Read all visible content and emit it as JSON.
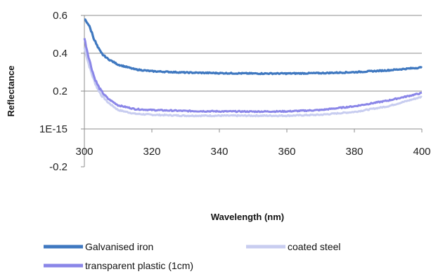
{
  "chart_data": {
    "type": "line",
    "xlabel": "Wavelength (nm)",
    "ylabel": "Reflectance",
    "xlim": [
      300,
      400
    ],
    "ylim": [
      -0.2,
      0.6
    ],
    "x_ticks": [
      "300",
      "320",
      "340",
      "360",
      "380",
      "400"
    ],
    "y_ticks": [
      "-0.2",
      "1E-15",
      "0.2",
      "0.4",
      "0.6"
    ],
    "grid": true,
    "legend_position": "bottom",
    "series": [
      {
        "name": "Galvanised iron",
        "color": "#3f78c0",
        "x": [
          300,
          301,
          302,
          303,
          304,
          305,
          307,
          310,
          315,
          320,
          330,
          340,
          350,
          360,
          370,
          380,
          390,
          400
        ],
        "y": [
          0.58,
          0.56,
          0.52,
          0.47,
          0.43,
          0.4,
          0.37,
          0.34,
          0.315,
          0.305,
          0.298,
          0.295,
          0.293,
          0.293,
          0.295,
          0.3,
          0.31,
          0.325
        ]
      },
      {
        "name": "coated steel",
        "color": "#c8cdf0",
        "x": [
          300,
          301,
          302,
          303,
          304,
          305,
          307,
          310,
          315,
          320,
          330,
          340,
          350,
          360,
          370,
          380,
          390,
          395,
          400
        ],
        "y": [
          0.43,
          0.36,
          0.3,
          0.25,
          0.21,
          0.18,
          0.14,
          0.1,
          0.08,
          0.075,
          0.07,
          0.07,
          0.07,
          0.07,
          0.075,
          0.09,
          0.12,
          0.145,
          0.17
        ]
      },
      {
        "name": "transparent plastic (1cm)",
        "color": "#8a86e8",
        "x": [
          300,
          301,
          302,
          303,
          304,
          305,
          307,
          310,
          315,
          320,
          330,
          340,
          350,
          360,
          370,
          380,
          390,
          400
        ],
        "y": [
          0.48,
          0.4,
          0.33,
          0.27,
          0.23,
          0.2,
          0.16,
          0.125,
          0.105,
          0.1,
          0.095,
          0.093,
          0.092,
          0.093,
          0.1,
          0.12,
          0.15,
          0.19
        ]
      }
    ]
  }
}
